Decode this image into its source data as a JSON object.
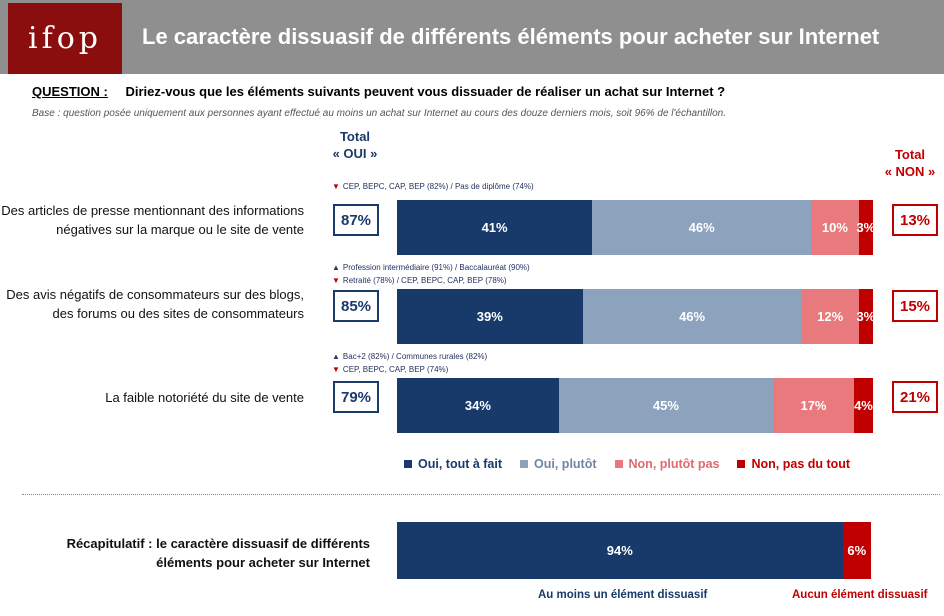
{
  "header": {
    "logo": "ifop",
    "title": "Le caractère dissuasif de différents éléments pour acheter sur Internet"
  },
  "question": {
    "label": "QUESTION :",
    "text": "Diriez-vous que les éléments suivants peuvent vous dissuader de réaliser un achat sur Internet ?"
  },
  "base": "Base : question posée uniquement aux personnes ayant effectué au moins un achat sur Internet au cours des douze derniers mois, soit 96% de l'échantillon.",
  "totals": {
    "oui_line1": "Total",
    "oui_line2": "« OUI »",
    "non_line1": "Total",
    "non_line2": "« NON »"
  },
  "colors": {
    "oui_tout_a_fait": "#173a6b",
    "oui_plutot": "#8da3bd",
    "non_plutot_pas": "#e8797c",
    "non_pas_du_tout": "#c00000"
  },
  "chart_data": [
    {
      "type": "bar",
      "orientation": "horizontal",
      "stacked": true,
      "categories": [
        "Des articles de presse mentionnant des informations négatives sur la marque ou le site de vente",
        "Des avis négatifs de consommateurs sur des blogs, des forums ou des sites de consommateurs",
        "La faible notoriété du site de vente"
      ],
      "series": [
        {
          "name": "Oui, tout à fait",
          "values": [
            41,
            39,
            34
          ]
        },
        {
          "name": "Oui, plutôt",
          "values": [
            46,
            46,
            45
          ]
        },
        {
          "name": "Non, plutôt pas",
          "values": [
            10,
            12,
            17
          ]
        },
        {
          "name": "Non, pas du tout",
          "values": [
            3,
            3,
            4
          ]
        }
      ],
      "total_oui": [
        "87%",
        "85%",
        "79%"
      ],
      "total_non": [
        "13%",
        "15%",
        "21%"
      ],
      "value_labels": [
        [
          "41%",
          "46%",
          "10%",
          "3%"
        ],
        [
          "39%",
          "46%",
          "12%",
          "3%"
        ],
        [
          "34%",
          "45%",
          "17%",
          "4%"
        ]
      ],
      "annotations": [
        [
          {
            "dir": "down",
            "text": "CEP, BEPC, CAP, BEP (82%) / Pas de diplôme (74%)"
          }
        ],
        [
          {
            "dir": "up",
            "text": "Profession intermédiaire (91%) / Baccalauréat (90%)"
          },
          {
            "dir": "down",
            "text": "Retraité (78%) / CEP, BEPC, CAP, BEP (78%)"
          }
        ],
        [
          {
            "dir": "up",
            "text": "Bac+2 (82%) / Communes rurales (82%)"
          },
          {
            "dir": "down",
            "text": "CEP, BEPC, CAP, BEP (74%)"
          }
        ]
      ],
      "legend": [
        "Oui, tout à fait",
        "Oui, plutôt",
        "Non, plutôt pas",
        "Non, pas du tout"
      ],
      "legend_placement": "bottom",
      "xlim": [
        0,
        100
      ]
    },
    {
      "type": "bar",
      "orientation": "horizontal",
      "stacked": true,
      "categories": [
        "Récapitulatif : le caractère dissuasif de différents éléments pour acheter sur Internet"
      ],
      "series": [
        {
          "name": "Au moins un élément dissuasif",
          "values": [
            94
          ]
        },
        {
          "name": "Aucun élément dissuasif",
          "values": [
            6
          ]
        }
      ],
      "value_labels": [
        [
          "94%",
          "6%"
        ]
      ],
      "xlim": [
        0,
        100
      ]
    }
  ]
}
